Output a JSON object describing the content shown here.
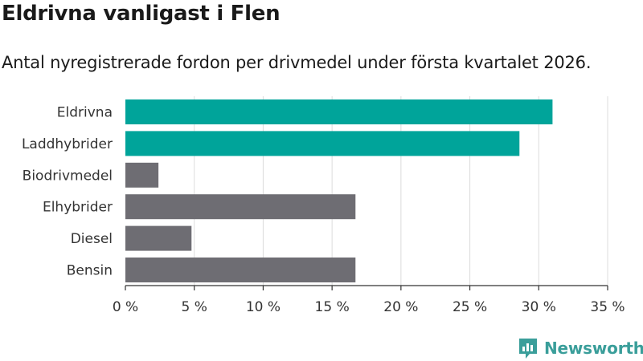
{
  "header": {
    "title": "Eldrivna vanligast i Flen",
    "subtitle": "Antal nyregistrerade fordon per drivmedel under första kvartalet 2026."
  },
  "brand": {
    "name": "Newsworthy",
    "color": "#3a9e9a"
  },
  "colors": {
    "highlight": "#00a49a",
    "default": "#6e6d73",
    "grid": "#dcdcdc"
  },
  "chart_data": {
    "type": "bar",
    "orientation": "horizontal",
    "title": "Eldrivna vanligast i Flen",
    "subtitle": "Antal nyregistrerade fordon per drivmedel under första kvartalet 2026.",
    "categories": [
      "Eldrivna",
      "Laddhybrider",
      "Biodrivmedel",
      "Elhybrider",
      "Diesel",
      "Bensin"
    ],
    "values": [
      31.0,
      28.6,
      2.4,
      16.7,
      4.8,
      16.7
    ],
    "highlighted": [
      true,
      true,
      false,
      false,
      false,
      false
    ],
    "xlim": [
      0,
      35
    ],
    "xticks": [
      0,
      5,
      10,
      15,
      20,
      25,
      30,
      35
    ],
    "xtick_labels": [
      "0 %",
      "5 %",
      "10 %",
      "15 %",
      "20 %",
      "25 %",
      "30 %",
      "35 %"
    ],
    "grid": "vertical",
    "legend": "none"
  }
}
